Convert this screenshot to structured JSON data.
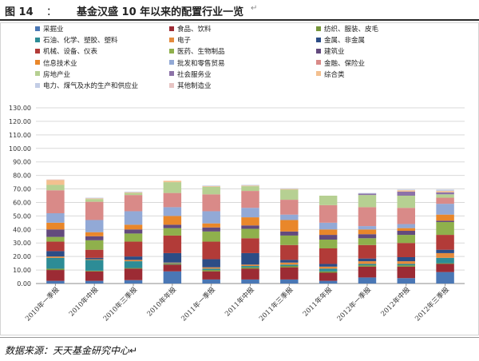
{
  "figure": {
    "label": "图 14",
    "colon": "：",
    "title": "基金汉盛 10 年以来的配置行业一览",
    "mark": "↵"
  },
  "source": "数据来源：天天基金研究中心↵",
  "chart_data": {
    "type": "bar",
    "stacked": true,
    "title": "",
    "xlabel": "",
    "ylabel": "",
    "ylim": [
      0,
      130
    ],
    "yticks": [
      "0.00",
      "10.00",
      "20.00",
      "30.00",
      "40.00",
      "50.00",
      "60.00",
      "70.00",
      "80.00",
      "90.00",
      "100.00",
      "110.00",
      "120.00",
      "130.00"
    ],
    "grid": true,
    "legend_position": "top",
    "categories": [
      "2010年一季报",
      "2010年中报",
      "2010年三季报",
      "2010年年报",
      "2011年一季报",
      "2011年中报",
      "2011年三季报",
      "2011年年报",
      "2012年一季报",
      "2012年中报",
      "2012年三季报"
    ],
    "series": [
      {
        "name": "采掘业",
        "color": "#4a77b5",
        "values": [
          2.0,
          2.0,
          2.5,
          9.0,
          3.0,
          3.0,
          3.0,
          2.0,
          4.5,
          4.0,
          8.5
        ]
      },
      {
        "name": "食品、饮料",
        "color": "#9c2b34",
        "values": [
          8.0,
          7.0,
          8.5,
          5.0,
          6.0,
          8.0,
          9.0,
          6.0,
          8.0,
          8.5,
          6.0
        ]
      },
      {
        "name": "纺织、服装、皮毛",
        "color": "#76963a",
        "values": [
          1.0,
          0.5,
          0.5,
          0.5,
          1.0,
          1.0,
          1.0,
          1.0,
          1.0,
          1.0,
          0.5
        ]
      },
      {
        "name": "石油、化学、塑胶、塑料",
        "color": "#2d8c96",
        "values": [
          8.0,
          8.0,
          5.0,
          0.5,
          1.0,
          1.0,
          1.0,
          2.0,
          1.0,
          1.0,
          4.0
        ]
      },
      {
        "name": "电子",
        "color": "#e48b3d",
        "values": [
          1.0,
          0.5,
          1.0,
          0.5,
          1.0,
          1.0,
          1.5,
          1.5,
          2.0,
          2.0,
          3.5
        ]
      },
      {
        "name": "金属、非金属",
        "color": "#2c4d86",
        "values": [
          4.0,
          1.0,
          2.5,
          7.0,
          6.0,
          8.5,
          2.0,
          2.0,
          2.0,
          3.0,
          2.5
        ]
      },
      {
        "name": "机械、设备、仪表",
        "color": "#b23b38",
        "values": [
          7.0,
          6.0,
          11.0,
          13.0,
          13.0,
          11.0,
          11.0,
          11.5,
          10.0,
          10.5,
          11.0
        ]
      },
      {
        "name": "医药、生物制品",
        "color": "#8fb04c",
        "values": [
          3.5,
          7.0,
          6.0,
          5.5,
          7.5,
          7.0,
          7.0,
          6.5,
          5.0,
          6.0,
          9.5
        ]
      },
      {
        "name": "建筑业",
        "color": "#634a7d",
        "values": [
          5.5,
          3.0,
          3.0,
          2.5,
          3.0,
          2.5,
          3.0,
          3.5,
          3.0,
          3.0,
          1.0
        ]
      },
      {
        "name": "信息技术业",
        "color": "#e9872a",
        "values": [
          5.0,
          3.0,
          3.5,
          6.5,
          3.0,
          6.0,
          8.5,
          4.0,
          3.5,
          2.0,
          4.5
        ]
      },
      {
        "name": "批发和零售贸易",
        "color": "#92a9d6",
        "values": [
          7.0,
          9.0,
          10.0,
          6.5,
          9.0,
          7.0,
          4.0,
          5.0,
          2.5,
          3.0,
          8.0
        ]
      },
      {
        "name": "金融、保险业",
        "color": "#d98a88",
        "values": [
          17.0,
          13.5,
          12.0,
          10.5,
          12.5,
          12.5,
          11.0,
          13.0,
          14.0,
          12.0,
          4.5
        ]
      },
      {
        "name": "房地产业",
        "color": "#b6d092",
        "values": [
          4.0,
          2.0,
          1.5,
          8.0,
          5.5,
          3.5,
          7.5,
          7.0,
          9.0,
          9.0,
          2.5
        ]
      },
      {
        "name": "社会服务业",
        "color": "#8c72a8",
        "values": [
          0.0,
          0.0,
          0.0,
          0.0,
          0.0,
          0.0,
          0.0,
          0.0,
          1.0,
          3.0,
          1.5
        ]
      },
      {
        "name": "综合类",
        "color": "#f3c08f",
        "values": [
          3.5,
          0.5,
          0.5,
          1.0,
          0.5,
          0.5,
          0.5,
          0.0,
          0.0,
          1.0,
          1.0
        ]
      },
      {
        "name": "电力、煤气及水的生产和供应业",
        "color": "#c3cde5",
        "values": [
          0.0,
          0.5,
          0.5,
          0.0,
          0.5,
          0.5,
          0.5,
          0.0,
          0.5,
          0.5,
          1.0
        ]
      },
      {
        "name": "其他制造业",
        "color": "#e7c4c3",
        "values": [
          0.5,
          0.0,
          0.0,
          0.0,
          0.0,
          0.0,
          0.0,
          0.0,
          0.0,
          0.0,
          0.0
        ]
      }
    ]
  }
}
